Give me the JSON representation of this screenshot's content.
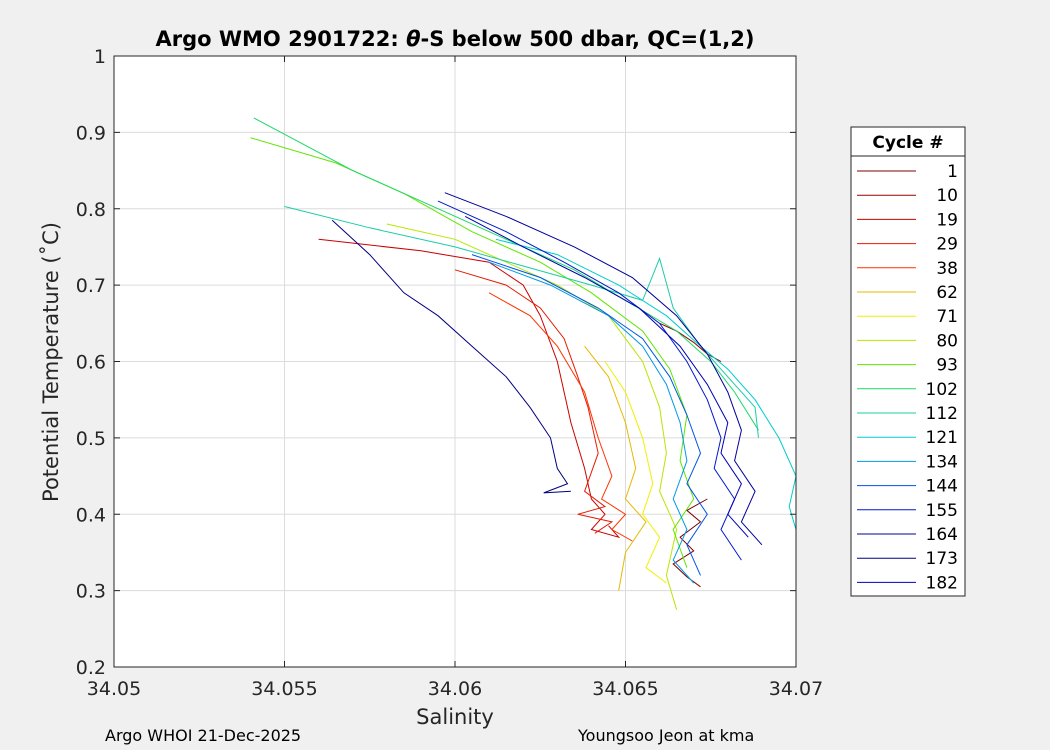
{
  "chart_data": {
    "type": "line",
    "title_prefix": "Argo WMO 2901722: ",
    "title_theta": "θ",
    "title_suffix": "-S below 500 dbar,  QC=(1,2)",
    "xlabel": "Salinity",
    "ylabel": "Potential Temperature (˚C)",
    "xlim": [
      34.05,
      34.07
    ],
    "ylim": [
      0.2,
      1.0
    ],
    "xticks": [
      34.05,
      34.055,
      34.06,
      34.065,
      34.07
    ],
    "xtick_labels": [
      "34.05",
      "34.055",
      "34.06",
      "34.065",
      "34.07"
    ],
    "yticks": [
      0.2,
      0.3,
      0.4,
      0.5,
      0.6,
      0.7,
      0.8,
      0.9,
      1.0
    ],
    "ytick_labels": [
      "0.2",
      "0.3",
      "0.4",
      "0.5",
      "0.6",
      "0.7",
      "0.8",
      "0.9",
      "1"
    ],
    "grid": true,
    "legend_title": "Cycle #",
    "legend_position": "right",
    "series": [
      {
        "name": "1",
        "color": "#800000",
        "points": [
          [
            34.0672,
            0.305
          ],
          [
            34.0668,
            0.318
          ],
          [
            34.0664,
            0.335
          ],
          [
            34.067,
            0.352
          ],
          [
            34.0666,
            0.37
          ],
          [
            34.0672,
            0.39
          ],
          [
            34.0668,
            0.405
          ],
          [
            34.0674,
            0.42
          ]
        ]
      },
      {
        "name": "10",
        "color": "#9a0000",
        "points": [
          [
            34.066,
            0.65
          ],
          [
            34.0665,
            0.64
          ],
          [
            34.067,
            0.625
          ],
          [
            34.0674,
            0.61
          ],
          [
            34.0678,
            0.6
          ]
        ]
      },
      {
        "name": "19",
        "color": "#cc0000",
        "points": [
          [
            34.056,
            0.76
          ],
          [
            34.059,
            0.745
          ],
          [
            34.061,
            0.73
          ],
          [
            34.062,
            0.7
          ],
          [
            34.0625,
            0.66
          ],
          [
            34.063,
            0.6
          ],
          [
            34.0634,
            0.52
          ],
          [
            34.0638,
            0.46
          ],
          [
            34.064,
            0.42
          ],
          [
            34.0644,
            0.4
          ],
          [
            34.064,
            0.38
          ],
          [
            34.0648,
            0.37
          ],
          [
            34.0645,
            0.385
          ]
        ]
      },
      {
        "name": "29",
        "color": "#e61a00",
        "points": [
          [
            34.06,
            0.72
          ],
          [
            34.0615,
            0.7
          ],
          [
            34.0625,
            0.67
          ],
          [
            34.0632,
            0.63
          ],
          [
            34.0636,
            0.58
          ],
          [
            34.0639,
            0.54
          ],
          [
            34.0642,
            0.48
          ],
          [
            34.0638,
            0.43
          ],
          [
            34.0644,
            0.41
          ],
          [
            34.0636,
            0.4
          ],
          [
            34.0646,
            0.39
          ],
          [
            34.0641,
            0.375
          ]
        ]
      },
      {
        "name": "38",
        "color": "#ff3300",
        "points": [
          [
            34.061,
            0.69
          ],
          [
            34.0622,
            0.66
          ],
          [
            34.063,
            0.62
          ],
          [
            34.0638,
            0.56
          ],
          [
            34.0642,
            0.5
          ],
          [
            34.0646,
            0.45
          ],
          [
            34.0643,
            0.42
          ],
          [
            34.065,
            0.4
          ],
          [
            34.0646,
            0.38
          ],
          [
            34.0652,
            0.365
          ]
        ]
      },
      {
        "name": "62",
        "color": "#e6b800",
        "points": [
          [
            34.0638,
            0.62
          ],
          [
            34.0645,
            0.58
          ],
          [
            34.065,
            0.52
          ],
          [
            34.0653,
            0.46
          ],
          [
            34.065,
            0.42
          ],
          [
            34.0656,
            0.39
          ],
          [
            34.065,
            0.35
          ],
          [
            34.0648,
            0.3
          ]
        ]
      },
      {
        "name": "71",
        "color": "#f0f000",
        "points": [
          [
            34.0644,
            0.6
          ],
          [
            34.065,
            0.56
          ],
          [
            34.0655,
            0.5
          ],
          [
            34.0658,
            0.44
          ],
          [
            34.0655,
            0.4
          ],
          [
            34.066,
            0.37
          ],
          [
            34.0656,
            0.33
          ],
          [
            34.0662,
            0.31
          ]
        ]
      },
      {
        "name": "80",
        "color": "#b8e600",
        "points": [
          [
            34.058,
            0.78
          ],
          [
            34.06,
            0.76
          ],
          [
            34.0615,
            0.73
          ],
          [
            34.063,
            0.7
          ],
          [
            34.0645,
            0.66
          ],
          [
            34.0655,
            0.6
          ],
          [
            34.066,
            0.54
          ],
          [
            34.0662,
            0.48
          ],
          [
            34.066,
            0.43
          ],
          [
            34.0665,
            0.38
          ],
          [
            34.0662,
            0.32
          ],
          [
            34.0665,
            0.275
          ]
        ]
      },
      {
        "name": "93",
        "color": "#5fe600",
        "points": [
          [
            34.054,
            0.893
          ],
          [
            34.0565,
            0.86
          ],
          [
            34.0585,
            0.82
          ],
          [
            34.0605,
            0.77
          ],
          [
            34.0625,
            0.73
          ],
          [
            34.064,
            0.69
          ],
          [
            34.0655,
            0.64
          ],
          [
            34.0663,
            0.59
          ],
          [
            34.0668,
            0.53
          ],
          [
            34.0666,
            0.47
          ],
          [
            34.067,
            0.42
          ],
          [
            34.0664,
            0.38
          ],
          [
            34.0668,
            0.33
          ]
        ]
      },
      {
        "name": "102",
        "color": "#1ad966",
        "points": [
          [
            34.0541,
            0.919
          ],
          [
            34.057,
            0.85
          ],
          [
            34.0595,
            0.8
          ],
          [
            34.0615,
            0.76
          ],
          [
            34.0635,
            0.72
          ],
          [
            34.065,
            0.68
          ],
          [
            34.0665,
            0.64
          ],
          [
            34.0675,
            0.6
          ],
          [
            34.0682,
            0.56
          ],
          [
            34.0689,
            0.51
          ]
        ]
      },
      {
        "name": "112",
        "color": "#1acca6",
        "points": [
          [
            34.055,
            0.803
          ],
          [
            34.0575,
            0.775
          ],
          [
            34.06,
            0.75
          ],
          [
            34.062,
            0.725
          ],
          [
            34.064,
            0.7
          ],
          [
            34.0655,
            0.68
          ],
          [
            34.066,
            0.735
          ],
          [
            34.0664,
            0.67
          ],
          [
            34.0672,
            0.62
          ],
          [
            34.068,
            0.58
          ],
          [
            34.0688,
            0.54
          ],
          [
            34.0689,
            0.5
          ]
        ]
      },
      {
        "name": "121",
        "color": "#00cccc",
        "points": [
          [
            34.0612,
            0.76
          ],
          [
            34.063,
            0.74
          ],
          [
            34.0648,
            0.7
          ],
          [
            34.0662,
            0.66
          ],
          [
            34.0672,
            0.62
          ],
          [
            34.068,
            0.59
          ],
          [
            34.0688,
            0.55
          ],
          [
            34.0695,
            0.5
          ],
          [
            34.07,
            0.45
          ],
          [
            34.0698,
            0.41
          ],
          [
            34.07,
            0.38
          ]
        ]
      },
      {
        "name": "134",
        "color": "#0099e6",
        "points": [
          [
            34.061,
            0.73
          ],
          [
            34.0628,
            0.7
          ],
          [
            34.0645,
            0.66
          ],
          [
            34.0655,
            0.62
          ],
          [
            34.0662,
            0.57
          ],
          [
            34.0666,
            0.52
          ],
          [
            34.0668,
            0.47
          ],
          [
            34.0664,
            0.42
          ],
          [
            34.0668,
            0.38
          ],
          [
            34.0664,
            0.34
          ],
          [
            34.067,
            0.31
          ]
        ]
      },
      {
        "name": "144",
        "color": "#0055e6",
        "points": [
          [
            34.0605,
            0.74
          ],
          [
            34.0625,
            0.71
          ],
          [
            34.0642,
            0.67
          ],
          [
            34.0655,
            0.63
          ],
          [
            34.0663,
            0.58
          ],
          [
            34.0668,
            0.53
          ],
          [
            34.0672,
            0.48
          ],
          [
            34.0668,
            0.44
          ],
          [
            34.0674,
            0.4
          ],
          [
            34.0668,
            0.36
          ],
          [
            34.0672,
            0.32
          ]
        ]
      },
      {
        "name": "155",
        "color": "#0019cc",
        "points": [
          [
            34.0595,
            0.81
          ],
          [
            34.0615,
            0.77
          ],
          [
            34.0632,
            0.73
          ],
          [
            34.0648,
            0.69
          ],
          [
            34.066,
            0.65
          ],
          [
            34.0668,
            0.6
          ],
          [
            34.0674,
            0.55
          ],
          [
            34.0678,
            0.5
          ],
          [
            34.0676,
            0.46
          ],
          [
            34.0682,
            0.42
          ],
          [
            34.0678,
            0.38
          ],
          [
            34.0684,
            0.34
          ]
        ]
      },
      {
        "name": "164",
        "color": "#00009a",
        "points": [
          [
            34.0597,
            0.821
          ],
          [
            34.0615,
            0.79
          ],
          [
            34.0635,
            0.75
          ],
          [
            34.0652,
            0.71
          ],
          [
            34.0665,
            0.66
          ],
          [
            34.0674,
            0.61
          ],
          [
            34.068,
            0.56
          ],
          [
            34.0684,
            0.51
          ],
          [
            34.0682,
            0.47
          ],
          [
            34.0688,
            0.43
          ],
          [
            34.0684,
            0.39
          ],
          [
            34.069,
            0.36
          ]
        ]
      },
      {
        "name": "173",
        "color": "#000080",
        "points": [
          [
            34.0564,
            0.785
          ],
          [
            34.0575,
            0.74
          ],
          [
            34.0585,
            0.69
          ],
          [
            34.0595,
            0.66
          ],
          [
            34.0605,
            0.62
          ],
          [
            34.0615,
            0.58
          ],
          [
            34.0622,
            0.54
          ],
          [
            34.0628,
            0.5
          ],
          [
            34.063,
            0.46
          ],
          [
            34.0633,
            0.44
          ],
          [
            34.0626,
            0.428
          ],
          [
            34.0634,
            0.43
          ]
        ]
      },
      {
        "name": "182",
        "color": "#0000b3",
        "points": [
          [
            34.0603,
            0.79
          ],
          [
            34.062,
            0.75
          ],
          [
            34.0638,
            0.71
          ],
          [
            34.0654,
            0.67
          ],
          [
            34.0666,
            0.62
          ],
          [
            34.0674,
            0.57
          ],
          [
            34.068,
            0.52
          ],
          [
            34.0678,
            0.48
          ],
          [
            34.0684,
            0.44
          ],
          [
            34.068,
            0.4
          ],
          [
            34.0686,
            0.37
          ]
        ]
      }
    ]
  },
  "footer": {
    "left": "Argo WHOI 21-Dec-2025",
    "right": "Youngsoo Jeon at kma"
  }
}
